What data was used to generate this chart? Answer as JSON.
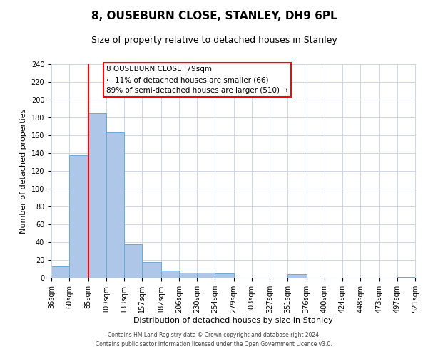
{
  "title": "8, OUSEBURN CLOSE, STANLEY, DH9 6PL",
  "subtitle": "Size of property relative to detached houses in Stanley",
  "xlabel": "Distribution of detached houses by size in Stanley",
  "ylabel": "Number of detached properties",
  "bar_left_edges": [
    36,
    60,
    85,
    109,
    133,
    157,
    182,
    206,
    230,
    254,
    279,
    303,
    327,
    351,
    376,
    400,
    424,
    448,
    473,
    497
  ],
  "bar_widths": [
    24,
    25,
    24,
    24,
    24,
    25,
    24,
    24,
    24,
    25,
    24,
    24,
    24,
    25,
    24,
    24,
    24,
    25,
    24,
    24
  ],
  "bar_heights": [
    13,
    138,
    185,
    163,
    38,
    18,
    8,
    6,
    6,
    5,
    0,
    0,
    0,
    4,
    0,
    0,
    0,
    0,
    0,
    1
  ],
  "bar_color": "#aec6e8",
  "bar_edge_color": "#6aaad4",
  "xlim": [
    36,
    521
  ],
  "ylim": [
    0,
    240
  ],
  "yticks": [
    0,
    20,
    40,
    60,
    80,
    100,
    120,
    140,
    160,
    180,
    200,
    220,
    240
  ],
  "xtick_labels": [
    "36sqm",
    "60sqm",
    "85sqm",
    "109sqm",
    "133sqm",
    "157sqm",
    "182sqm",
    "206sqm",
    "230sqm",
    "254sqm",
    "279sqm",
    "303sqm",
    "327sqm",
    "351sqm",
    "376sqm",
    "400sqm",
    "424sqm",
    "448sqm",
    "473sqm",
    "497sqm",
    "521sqm"
  ],
  "xtick_positions": [
    36,
    60,
    85,
    109,
    133,
    157,
    182,
    206,
    230,
    254,
    279,
    303,
    327,
    351,
    376,
    400,
    424,
    448,
    473,
    497,
    521
  ],
  "red_line_x": 85,
  "annotation_title": "8 OUSEBURN CLOSE: 79sqm",
  "annotation_line1": "← 11% of detached houses are smaller (66)",
  "annotation_line2": "89% of semi-detached houses are larger (510) →",
  "footer_line1": "Contains HM Land Registry data © Crown copyright and database right 2024.",
  "footer_line2": "Contains public sector information licensed under the Open Government Licence v3.0.",
  "background_color": "#ffffff",
  "grid_color": "#ccd6e8",
  "title_fontsize": 11,
  "subtitle_fontsize": 9,
  "axis_label_fontsize": 8,
  "tick_fontsize": 7,
  "annotation_fontsize": 7.5
}
